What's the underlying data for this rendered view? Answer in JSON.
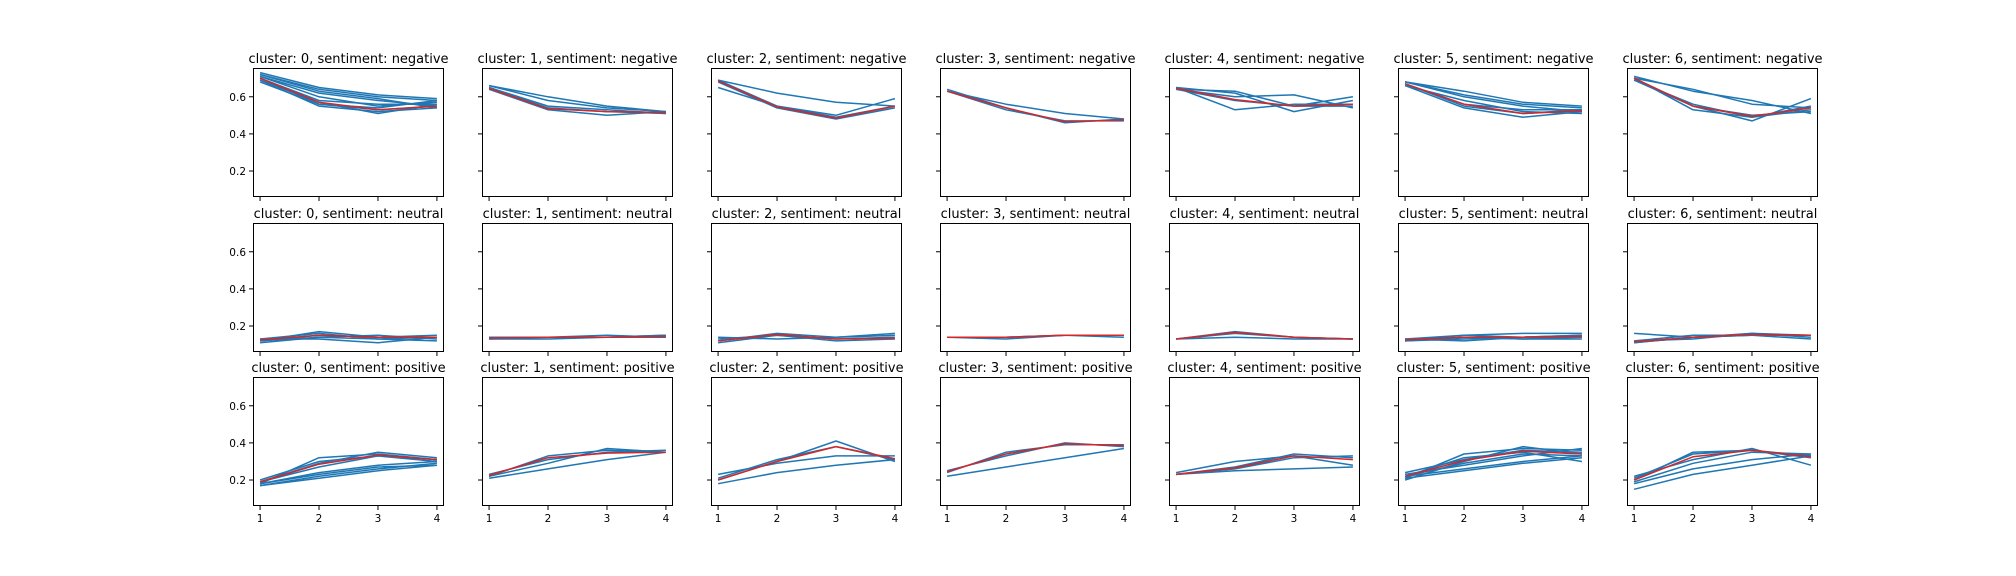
{
  "chart_data": {
    "type": "line",
    "layout": "small-multiples grid, 3 rows (sentiment) x 7 columns (cluster), shared axes",
    "x_ticks": [
      1,
      2,
      3,
      4
    ],
    "y_ticks": [
      0.2,
      0.4,
      0.6
    ],
    "xlim": [
      0.88,
      4.12
    ],
    "ylim": [
      0.06,
      0.755
    ],
    "colors": {
      "member": "#1f77b4",
      "centroid": "#d62728",
      "frame": "#000000"
    },
    "panels": [
      {
        "title": "cluster: 0, sentiment: negative",
        "cluster": 0,
        "sentiment": "negative",
        "series": [
          [
            0.7,
            0.56,
            0.53,
            0.55
          ],
          [
            0.71,
            0.6,
            0.55,
            0.57
          ],
          [
            0.69,
            0.55,
            0.52,
            0.54
          ],
          [
            0.72,
            0.64,
            0.6,
            0.58
          ],
          [
            0.7,
            0.58,
            0.56,
            0.56
          ],
          [
            0.71,
            0.62,
            0.58,
            0.55
          ],
          [
            0.68,
            0.56,
            0.54,
            0.58
          ],
          [
            0.73,
            0.65,
            0.61,
            0.59
          ],
          [
            0.69,
            0.57,
            0.51,
            0.56
          ],
          [
            0.72,
            0.63,
            0.59,
            0.54
          ]
        ],
        "centroid": [
          0.7,
          0.57,
          0.53,
          0.55
        ]
      },
      {
        "title": "cluster: 1, sentiment: negative",
        "cluster": 1,
        "sentiment": "negative",
        "series": [
          [
            0.65,
            0.54,
            0.52,
            0.51
          ],
          [
            0.66,
            0.6,
            0.55,
            0.52
          ],
          [
            0.64,
            0.53,
            0.5,
            0.52
          ],
          [
            0.65,
            0.55,
            0.53,
            0.51
          ],
          [
            0.66,
            0.58,
            0.54,
            0.52
          ]
        ],
        "centroid": [
          0.645,
          0.535,
          0.52,
          0.515
        ]
      },
      {
        "title": "cluster: 2, sentiment: negative",
        "cluster": 2,
        "sentiment": "negative",
        "series": [
          [
            0.69,
            0.55,
            0.49,
            0.55
          ],
          [
            0.65,
            0.55,
            0.5,
            0.59
          ],
          [
            0.69,
            0.62,
            0.57,
            0.55
          ],
          [
            0.68,
            0.54,
            0.48,
            0.54
          ]
        ],
        "centroid": [
          0.685,
          0.545,
          0.485,
          0.55
        ]
      },
      {
        "title": "cluster: 3, sentiment: negative",
        "cluster": 3,
        "sentiment": "negative",
        "series": [
          [
            0.64,
            0.54,
            0.46,
            0.48
          ],
          [
            0.63,
            0.53,
            0.47,
            0.47
          ],
          [
            0.63,
            0.56,
            0.51,
            0.48
          ]
        ],
        "centroid": [
          0.63,
          0.54,
          0.465,
          0.475
        ]
      },
      {
        "title": "cluster: 4, sentiment: negative",
        "cluster": 4,
        "sentiment": "negative",
        "series": [
          [
            0.65,
            0.53,
            0.56,
            0.56
          ],
          [
            0.64,
            0.63,
            0.55,
            0.6
          ],
          [
            0.65,
            0.62,
            0.52,
            0.58
          ],
          [
            0.64,
            0.6,
            0.61,
            0.54
          ],
          [
            0.64,
            0.58,
            0.55,
            0.55
          ]
        ],
        "centroid": [
          0.645,
          0.585,
          0.55,
          0.56
        ]
      },
      {
        "title": "cluster: 5, sentiment: negative",
        "cluster": 5,
        "sentiment": "negative",
        "series": [
          [
            0.67,
            0.55,
            0.51,
            0.53
          ],
          [
            0.68,
            0.6,
            0.55,
            0.52
          ],
          [
            0.66,
            0.54,
            0.49,
            0.52
          ],
          [
            0.68,
            0.63,
            0.57,
            0.55
          ],
          [
            0.67,
            0.56,
            0.53,
            0.53
          ],
          [
            0.66,
            0.58,
            0.52,
            0.51
          ],
          [
            0.68,
            0.61,
            0.56,
            0.54
          ]
        ],
        "centroid": [
          0.67,
          0.56,
          0.51,
          0.525
        ]
      },
      {
        "title": "cluster: 6, sentiment: negative",
        "cluster": 6,
        "sentiment": "negative",
        "series": [
          [
            0.7,
            0.53,
            0.49,
            0.53
          ],
          [
            0.69,
            0.55,
            0.47,
            0.59
          ],
          [
            0.71,
            0.63,
            0.58,
            0.51
          ],
          [
            0.7,
            0.55,
            0.5,
            0.52
          ],
          [
            0.7,
            0.64,
            0.56,
            0.54
          ],
          [
            0.69,
            0.56,
            0.49,
            0.55
          ]
        ],
        "centroid": [
          0.7,
          0.55,
          0.495,
          0.54
        ]
      },
      {
        "title": "cluster: 0, sentiment: neutral",
        "cluster": 0,
        "sentiment": "neutral",
        "series": [
          [
            0.12,
            0.17,
            0.14,
            0.14
          ],
          [
            0.13,
            0.13,
            0.11,
            0.14
          ],
          [
            0.11,
            0.14,
            0.15,
            0.13
          ],
          [
            0.12,
            0.15,
            0.14,
            0.15
          ],
          [
            0.13,
            0.16,
            0.13,
            0.12
          ],
          [
            0.12,
            0.14,
            0.13,
            0.14
          ]
        ],
        "centroid": [
          0.125,
          0.15,
          0.14,
          0.14
        ]
      },
      {
        "title": "cluster: 1, sentiment: neutral",
        "cluster": 1,
        "sentiment": "neutral",
        "series": [
          [
            0.14,
            0.14,
            0.14,
            0.14
          ],
          [
            0.13,
            0.14,
            0.14,
            0.15
          ],
          [
            0.14,
            0.14,
            0.15,
            0.14
          ],
          [
            0.13,
            0.13,
            0.14,
            0.15
          ]
        ],
        "centroid": [
          0.135,
          0.14,
          0.14,
          0.145
        ]
      },
      {
        "title": "cluster: 2, sentiment: neutral",
        "cluster": 2,
        "sentiment": "neutral",
        "series": [
          [
            0.12,
            0.16,
            0.14,
            0.15
          ],
          [
            0.14,
            0.13,
            0.14,
            0.16
          ],
          [
            0.11,
            0.15,
            0.12,
            0.13
          ],
          [
            0.13,
            0.15,
            0.13,
            0.14
          ]
        ],
        "centroid": [
          0.12,
          0.155,
          0.13,
          0.135
        ]
      },
      {
        "title": "cluster: 3, sentiment: neutral",
        "cluster": 3,
        "sentiment": "neutral",
        "series": [
          [
            0.14,
            0.14,
            0.15,
            0.15
          ],
          [
            0.14,
            0.13,
            0.15,
            0.14
          ],
          [
            0.14,
            0.14,
            0.15,
            0.15
          ]
        ],
        "centroid": [
          0.14,
          0.14,
          0.15,
          0.15
        ]
      },
      {
        "title": "cluster: 4, sentiment: neutral",
        "cluster": 4,
        "sentiment": "neutral",
        "series": [
          [
            0.13,
            0.17,
            0.14,
            0.13
          ],
          [
            0.13,
            0.14,
            0.13,
            0.13
          ],
          [
            0.13,
            0.16,
            0.14,
            0.13
          ]
        ],
        "centroid": [
          0.13,
          0.165,
          0.14,
          0.13
        ]
      },
      {
        "title": "cluster: 5, sentiment: neutral",
        "cluster": 5,
        "sentiment": "neutral",
        "series": [
          [
            0.12,
            0.14,
            0.13,
            0.14
          ],
          [
            0.13,
            0.15,
            0.16,
            0.16
          ],
          [
            0.12,
            0.13,
            0.14,
            0.15
          ],
          [
            0.12,
            0.14,
            0.13,
            0.13
          ],
          [
            0.13,
            0.12,
            0.14,
            0.14
          ],
          [
            0.12,
            0.15,
            0.14,
            0.15
          ]
        ],
        "centroid": [
          0.125,
          0.14,
          0.14,
          0.145
        ]
      },
      {
        "title": "cluster: 6, sentiment: neutral",
        "cluster": 6,
        "sentiment": "neutral",
        "series": [
          [
            0.16,
            0.14,
            0.15,
            0.15
          ],
          [
            0.11,
            0.14,
            0.15,
            0.15
          ],
          [
            0.12,
            0.13,
            0.16,
            0.14
          ],
          [
            0.12,
            0.15,
            0.15,
            0.13
          ],
          [
            0.11,
            0.14,
            0.16,
            0.15
          ]
        ],
        "centroid": [
          0.115,
          0.14,
          0.155,
          0.15
        ]
      },
      {
        "title": "cluster: 0, sentiment: positive",
        "cluster": 0,
        "sentiment": "positive",
        "series": [
          [
            0.18,
            0.32,
            0.34,
            0.31
          ],
          [
            0.18,
            0.23,
            0.27,
            0.28
          ],
          [
            0.19,
            0.29,
            0.35,
            0.32
          ],
          [
            0.17,
            0.22,
            0.26,
            0.29
          ],
          [
            0.2,
            0.3,
            0.33,
            0.3
          ],
          [
            0.18,
            0.24,
            0.28,
            0.3
          ],
          [
            0.19,
            0.27,
            0.33,
            0.31
          ],
          [
            0.17,
            0.21,
            0.25,
            0.28
          ]
        ],
        "centroid": [
          0.19,
          0.285,
          0.335,
          0.31
        ]
      },
      {
        "title": "cluster: 1, sentiment: positive",
        "cluster": 1,
        "sentiment": "positive",
        "series": [
          [
            0.22,
            0.33,
            0.36,
            0.35
          ],
          [
            0.21,
            0.26,
            0.31,
            0.35
          ],
          [
            0.23,
            0.31,
            0.35,
            0.36
          ],
          [
            0.22,
            0.29,
            0.37,
            0.35
          ]
        ],
        "centroid": [
          0.225,
          0.32,
          0.345,
          0.35
        ]
      },
      {
        "title": "cluster: 2, sentiment: positive",
        "cluster": 2,
        "sentiment": "positive",
        "series": [
          [
            0.18,
            0.24,
            0.28,
            0.31
          ],
          [
            0.2,
            0.3,
            0.41,
            0.3
          ],
          [
            0.23,
            0.29,
            0.33,
            0.33
          ],
          [
            0.21,
            0.31,
            0.38,
            0.31
          ]
        ],
        "centroid": [
          0.2,
          0.3,
          0.38,
          0.315
        ]
      },
      {
        "title": "cluster: 3, sentiment: positive",
        "cluster": 3,
        "sentiment": "positive",
        "series": [
          [
            0.22,
            0.27,
            0.32,
            0.37
          ],
          [
            0.24,
            0.35,
            0.39,
            0.39
          ],
          [
            0.25,
            0.33,
            0.4,
            0.38
          ]
        ],
        "centroid": [
          0.245,
          0.34,
          0.395,
          0.385
        ]
      },
      {
        "title": "cluster: 4, sentiment: positive",
        "cluster": 4,
        "sentiment": "positive",
        "series": [
          [
            0.23,
            0.25,
            0.26,
            0.27
          ],
          [
            0.24,
            0.3,
            0.33,
            0.28
          ],
          [
            0.23,
            0.27,
            0.34,
            0.32
          ],
          [
            0.23,
            0.26,
            0.32,
            0.33
          ]
        ],
        "centroid": [
          0.23,
          0.265,
          0.33,
          0.31
        ]
      },
      {
        "title": "cluster: 5, sentiment: positive",
        "cluster": 5,
        "sentiment": "positive",
        "series": [
          [
            0.21,
            0.34,
            0.37,
            0.36
          ],
          [
            0.22,
            0.26,
            0.3,
            0.33
          ],
          [
            0.2,
            0.3,
            0.38,
            0.34
          ],
          [
            0.23,
            0.28,
            0.33,
            0.37
          ],
          [
            0.22,
            0.32,
            0.35,
            0.3
          ],
          [
            0.21,
            0.25,
            0.29,
            0.32
          ],
          [
            0.24,
            0.31,
            0.36,
            0.35
          ],
          [
            0.22,
            0.29,
            0.34,
            0.33
          ]
        ],
        "centroid": [
          0.22,
          0.305,
          0.355,
          0.34
        ]
      },
      {
        "title": "cluster: 6, sentiment: positive",
        "cluster": 6,
        "sentiment": "positive",
        "series": [
          [
            0.15,
            0.23,
            0.28,
            0.33
          ],
          [
            0.2,
            0.35,
            0.36,
            0.33
          ],
          [
            0.22,
            0.31,
            0.37,
            0.28
          ],
          [
            0.19,
            0.29,
            0.35,
            0.34
          ],
          [
            0.21,
            0.34,
            0.36,
            0.32
          ],
          [
            0.18,
            0.26,
            0.31,
            0.34
          ]
        ],
        "centroid": [
          0.2,
          0.325,
          0.36,
          0.325
        ]
      }
    ]
  }
}
